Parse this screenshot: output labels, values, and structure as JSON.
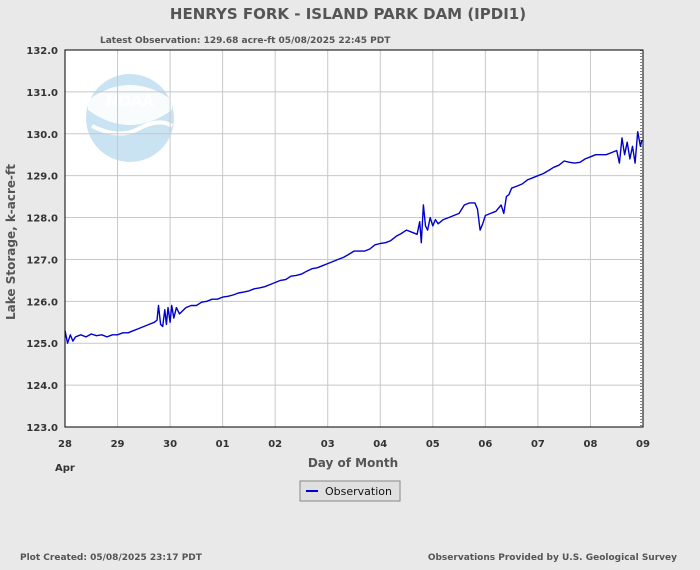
{
  "chart_data": {
    "type": "line",
    "title": "HENRYS FORK - ISLAND PARK DAM  (IPDI1)",
    "latest_observation": "Latest Observation: 129.68 acre-ft 05/08/2025 22:45 PDT",
    "xlabel": "Day of Month",
    "ylabel": "Lake Storage, k-acre-ft",
    "month_label": "Apr",
    "x_tick_labels": [
      "28",
      "29",
      "30",
      "01",
      "02",
      "03",
      "04",
      "05",
      "06",
      "07",
      "08",
      "09"
    ],
    "x_range_days": [
      0,
      11
    ],
    "ylim": [
      123.0,
      132.0
    ],
    "y_ticks": [
      123.0,
      124.0,
      125.0,
      126.0,
      127.0,
      128.0,
      129.0,
      130.0,
      131.0,
      132.0
    ],
    "y_tick_labels": [
      "123.0",
      "124.0",
      "125.0",
      "126.0",
      "127.0",
      "128.0",
      "129.0",
      "130.0",
      "131.0",
      "132.0"
    ],
    "grid": true,
    "legend": "bottom-center",
    "series": [
      {
        "name": "Observation",
        "color": "#0000cc",
        "points": [
          [
            0.0,
            125.3
          ],
          [
            0.05,
            125.0
          ],
          [
            0.1,
            125.2
          ],
          [
            0.15,
            125.05
          ],
          [
            0.2,
            125.15
          ],
          [
            0.3,
            125.2
          ],
          [
            0.4,
            125.15
          ],
          [
            0.5,
            125.22
          ],
          [
            0.6,
            125.18
          ],
          [
            0.7,
            125.2
          ],
          [
            0.8,
            125.15
          ],
          [
            0.9,
            125.2
          ],
          [
            1.0,
            125.2
          ],
          [
            1.1,
            125.25
          ],
          [
            1.2,
            125.25
          ],
          [
            1.3,
            125.3
          ],
          [
            1.4,
            125.35
          ],
          [
            1.5,
            125.4
          ],
          [
            1.6,
            125.45
          ],
          [
            1.7,
            125.5
          ],
          [
            1.75,
            125.55
          ],
          [
            1.78,
            125.9
          ],
          [
            1.82,
            125.45
          ],
          [
            1.86,
            125.4
          ],
          [
            1.9,
            125.8
          ],
          [
            1.93,
            125.45
          ],
          [
            1.96,
            125.85
          ],
          [
            2.0,
            125.5
          ],
          [
            2.03,
            125.9
          ],
          [
            2.07,
            125.6
          ],
          [
            2.12,
            125.85
          ],
          [
            2.18,
            125.7
          ],
          [
            2.3,
            125.85
          ],
          [
            2.4,
            125.9
          ],
          [
            2.5,
            125.9
          ],
          [
            2.6,
            125.98
          ],
          [
            2.7,
            126.0
          ],
          [
            2.8,
            126.05
          ],
          [
            2.9,
            126.05
          ],
          [
            3.0,
            126.1
          ],
          [
            3.1,
            126.12
          ],
          [
            3.2,
            126.15
          ],
          [
            3.3,
            126.2
          ],
          [
            3.4,
            126.22
          ],
          [
            3.5,
            126.25
          ],
          [
            3.6,
            126.3
          ],
          [
            3.7,
            126.32
          ],
          [
            3.8,
            126.35
          ],
          [
            3.9,
            126.4
          ],
          [
            4.0,
            126.45
          ],
          [
            4.1,
            126.5
          ],
          [
            4.2,
            126.52
          ],
          [
            4.3,
            126.6
          ],
          [
            4.4,
            126.62
          ],
          [
            4.5,
            126.65
          ],
          [
            4.6,
            126.72
          ],
          [
            4.7,
            126.78
          ],
          [
            4.8,
            126.8
          ],
          [
            4.9,
            126.85
          ],
          [
            5.0,
            126.9
          ],
          [
            5.1,
            126.95
          ],
          [
            5.2,
            127.0
          ],
          [
            5.3,
            127.05
          ],
          [
            5.4,
            127.12
          ],
          [
            5.5,
            127.2
          ],
          [
            5.6,
            127.2
          ],
          [
            5.7,
            127.2
          ],
          [
            5.8,
            127.25
          ],
          [
            5.9,
            127.35
          ],
          [
            6.0,
            127.38
          ],
          [
            6.1,
            127.4
          ],
          [
            6.2,
            127.45
          ],
          [
            6.3,
            127.55
          ],
          [
            6.4,
            127.62
          ],
          [
            6.5,
            127.7
          ],
          [
            6.6,
            127.65
          ],
          [
            6.7,
            127.6
          ],
          [
            6.75,
            127.9
          ],
          [
            6.78,
            127.4
          ],
          [
            6.82,
            128.3
          ],
          [
            6.86,
            127.8
          ],
          [
            6.9,
            127.7
          ],
          [
            6.95,
            128.0
          ],
          [
            7.0,
            127.8
          ],
          [
            7.05,
            127.95
          ],
          [
            7.1,
            127.85
          ],
          [
            7.2,
            127.95
          ],
          [
            7.3,
            128.0
          ],
          [
            7.4,
            128.05
          ],
          [
            7.5,
            128.1
          ],
          [
            7.6,
            128.3
          ],
          [
            7.7,
            128.35
          ],
          [
            7.8,
            128.35
          ],
          [
            7.85,
            128.2
          ],
          [
            7.9,
            127.7
          ],
          [
            7.95,
            127.85
          ],
          [
            8.0,
            128.05
          ],
          [
            8.1,
            128.1
          ],
          [
            8.2,
            128.15
          ],
          [
            8.3,
            128.3
          ],
          [
            8.35,
            128.1
          ],
          [
            8.4,
            128.5
          ],
          [
            8.45,
            128.55
          ],
          [
            8.5,
            128.7
          ],
          [
            8.6,
            128.75
          ],
          [
            8.7,
            128.8
          ],
          [
            8.8,
            128.9
          ],
          [
            8.9,
            128.95
          ],
          [
            9.0,
            129.0
          ],
          [
            9.1,
            129.05
          ],
          [
            9.2,
            129.12
          ],
          [
            9.3,
            129.2
          ],
          [
            9.4,
            129.25
          ],
          [
            9.5,
            129.35
          ],
          [
            9.6,
            129.32
          ],
          [
            9.7,
            129.3
          ],
          [
            9.8,
            129.32
          ],
          [
            9.9,
            129.4
          ],
          [
            10.0,
            129.45
          ],
          [
            10.1,
            129.5
          ],
          [
            10.2,
            129.5
          ],
          [
            10.3,
            129.5
          ],
          [
            10.4,
            129.55
          ],
          [
            10.5,
            129.6
          ],
          [
            10.55,
            129.3
          ],
          [
            10.6,
            129.9
          ],
          [
            10.65,
            129.5
          ],
          [
            10.7,
            129.8
          ],
          [
            10.75,
            129.4
          ],
          [
            10.8,
            129.7
          ],
          [
            10.85,
            129.3
          ],
          [
            10.9,
            130.05
          ],
          [
            10.95,
            129.7
          ],
          [
            10.98,
            129.85
          ]
        ]
      }
    ]
  },
  "footer": {
    "plot_created": "Plot Created: 05/08/2025 23:17 PDT",
    "provider": "Observations Provided by U.S. Geological Survey"
  },
  "logo": {
    "name": "noaa-logo-watermark",
    "text": "NOAA"
  }
}
